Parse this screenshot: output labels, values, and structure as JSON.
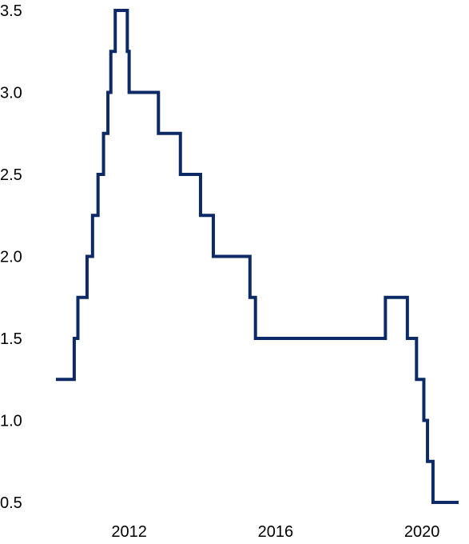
{
  "chart_data": {
    "type": "line",
    "step": true,
    "title": "",
    "xlabel": "",
    "ylabel": "",
    "xlim": [
      2010.0,
      2021.0
    ],
    "ylim": [
      0.5,
      3.5
    ],
    "grid": false,
    "legend": "none",
    "colors": {
      "line": "#0b2a66",
      "text": "#000000",
      "background": "#ffffff"
    },
    "yticks": [
      "3.5",
      "3.0",
      "2.5",
      "2.0",
      "1.5",
      "1.0",
      "0.5"
    ],
    "ytick_values": [
      3.5,
      3.0,
      2.5,
      2.0,
      1.5,
      1.0,
      0.5
    ],
    "xticks": [
      "2012",
      "2016",
      "2020"
    ],
    "xtick_values": [
      2012,
      2016,
      2020
    ],
    "series": [
      {
        "x": [
          2010.0,
          2010.5,
          2010.6,
          2010.85,
          2011.0,
          2011.15,
          2011.3,
          2011.42,
          2011.5,
          2011.62,
          2011.7,
          2011.75,
          2011.95,
          2012.0,
          2012.8,
          2013.4,
          2013.95,
          2014.3,
          2015.3,
          2015.45,
          2019.0,
          2019.6,
          2019.85,
          2020.05,
          2020.15,
          2020.3,
          2021.0
        ],
        "y": [
          1.25,
          1.5,
          1.75,
          2.0,
          2.25,
          2.5,
          2.75,
          3.0,
          3.25,
          3.5,
          3.5,
          3.5,
          3.25,
          3.0,
          2.75,
          2.5,
          2.25,
          2.0,
          1.75,
          1.5,
          1.75,
          1.5,
          1.25,
          1.0,
          0.75,
          0.5,
          0.5
        ]
      }
    ]
  }
}
